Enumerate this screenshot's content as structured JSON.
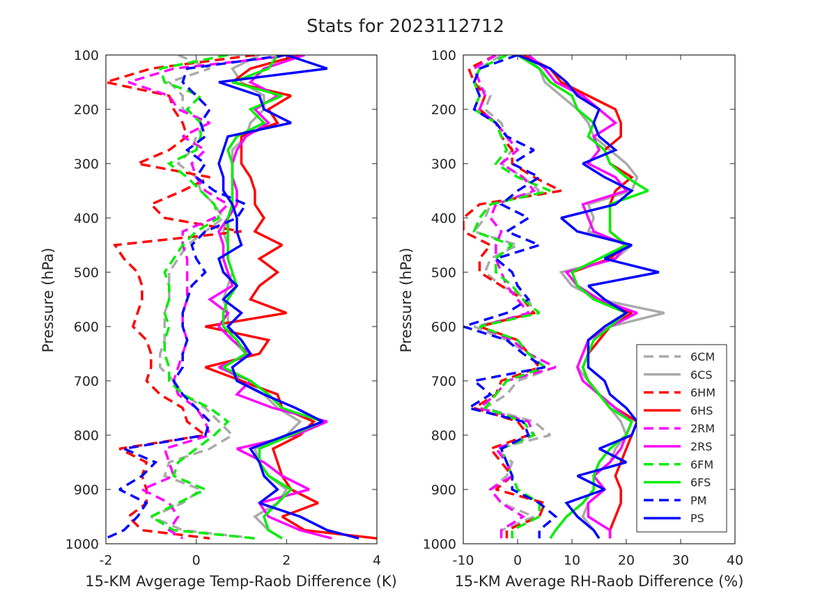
{
  "title": "Stats for 2023112712",
  "colors": {
    "6C": "#aaaaaa",
    "6H": "#ff0000",
    "2R": "#ff00ff",
    "6F": "#00ee00",
    "P": "#0000ff"
  },
  "legend": [
    {
      "label": "6CM",
      "color": "#aaaaaa",
      "dashed": true
    },
    {
      "label": "6CS",
      "color": "#aaaaaa",
      "dashed": false
    },
    {
      "label": "6HM",
      "color": "#ff0000",
      "dashed": true
    },
    {
      "label": "6HS",
      "color": "#ff0000",
      "dashed": false
    },
    {
      "label": "2RM",
      "color": "#ff00ff",
      "dashed": true
    },
    {
      "label": "2RS",
      "color": "#ff00ff",
      "dashed": false
    },
    {
      "label": "6FM",
      "color": "#00ee00",
      "dashed": true
    },
    {
      "label": "6FS",
      "color": "#00ee00",
      "dashed": false
    },
    {
      "label": "PM",
      "color": "#0000ff",
      "dashed": true
    },
    {
      "label": "PS",
      "color": "#0000ff",
      "dashed": false
    }
  ],
  "chart_data": [
    {
      "type": "line",
      "xlabel": "15-KM Avgerage Temp-Raob Difference (K)",
      "ylabel": "Pressure (hPa)",
      "xlim": [
        -2,
        4
      ],
      "ylim": [
        100,
        1000
      ],
      "y_reversed": true,
      "xticks": [
        -2,
        0,
        2,
        4
      ],
      "yticks": [
        100,
        200,
        300,
        400,
        500,
        600,
        700,
        800,
        900,
        1000
      ],
      "pressure": [
        100,
        125,
        150,
        175,
        200,
        225,
        250,
        275,
        300,
        325,
        350,
        375,
        400,
        425,
        450,
        475,
        500,
        525,
        550,
        575,
        600,
        625,
        650,
        675,
        700,
        725,
        750,
        775,
        800,
        825,
        850,
        875,
        900,
        925,
        950,
        975,
        990
      ],
      "series": [
        {
          "name": "6CM",
          "values": [
            -0.4,
            0.3,
            -0.6,
            -0.3,
            -0.3,
            0.2,
            0.0,
            -0.1,
            -0.4,
            0.0,
            0.1,
            0.4,
            0.6,
            0.2,
            -0.2,
            -0.4,
            -0.6,
            -0.6,
            -0.6,
            -0.7,
            -0.7,
            -0.7,
            -0.8,
            -0.8,
            -0.5,
            -0.3,
            0.2,
            0.5,
            0.8,
            0.3,
            -0.6,
            -0.7,
            0.1,
            -0.3,
            -1.0,
            -0.3,
            1.3
          ]
        },
        {
          "name": "6CS",
          "values": [
            1.4,
            0.8,
            1.0,
            1.5,
            1.5,
            1.2,
            1.1,
            0.8,
            0.8,
            0.8,
            0.9,
            0.9,
            0.7,
            0.6,
            0.7,
            0.7,
            0.8,
            0.7,
            0.6,
            0.7,
            0.7,
            0.8,
            1.1,
            0.6,
            1.0,
            1.5,
            1.8,
            2.3,
            2.0,
            1.3,
            1.4,
            1.6,
            2.0,
            1.8,
            1.3,
            1.6,
            1.9
          ]
        },
        {
          "name": "6HM",
          "values": [
            1.3,
            -1.0,
            -2.0,
            -0.6,
            -0.5,
            -0.3,
            -0.2,
            -0.6,
            -1.3,
            0.3,
            -0.3,
            -1.0,
            -0.7,
            1.0,
            -1.8,
            -1.6,
            -1.3,
            -1.2,
            -1.2,
            -1.3,
            -1.4,
            -1.1,
            -1.0,
            -1.0,
            -1.1,
            -0.8,
            -0.3,
            -0.2,
            0.2,
            -1.7,
            -1.1,
            -1.2,
            -1.1,
            -1.1,
            -1.5,
            -1.2,
            0.3
          ]
        },
        {
          "name": "6HS",
          "values": [
            2.3,
            1.2,
            0.8,
            2.1,
            1.6,
            1.8,
            1.0,
            1.0,
            1.0,
            1.2,
            1.3,
            1.3,
            1.5,
            1.3,
            1.9,
            1.4,
            1.8,
            1.4,
            1.2,
            2.0,
            0.2,
            1.6,
            1.4,
            0.2,
            1.0,
            1.8,
            1.9,
            2.6,
            2.3,
            1.7,
            1.8,
            1.9,
            2.1,
            2.7,
            1.9,
            2.4,
            4.0
          ]
        },
        {
          "name": "2RM",
          "values": [
            2.2,
            -0.5,
            -1.5,
            -0.6,
            -0.4,
            0.3,
            -0.3,
            0.2,
            -0.1,
            0.0,
            0.2,
            0.7,
            0.4,
            -0.3,
            -0.3,
            -0.2,
            -0.2,
            -0.2,
            -0.2,
            -0.3,
            -0.3,
            -0.2,
            -0.3,
            -0.4,
            -0.5,
            -0.4,
            0.0,
            0.2,
            0.3,
            -0.7,
            -0.6,
            -0.5,
            -1.2,
            -0.6,
            -0.4,
            -0.6,
            -0.3
          ]
        },
        {
          "name": "2RS",
          "values": [
            2.4,
            1.5,
            1.2,
            1.8,
            1.3,
            1.6,
            1.1,
            0.9,
            0.8,
            0.8,
            0.9,
            0.9,
            0.7,
            0.5,
            0.6,
            0.6,
            0.7,
            0.8,
            0.3,
            0.7,
            0.5,
            0.8,
            1.2,
            0.5,
            1.2,
            0.9,
            1.7,
            2.9,
            2.2,
            0.9,
            1.5,
            1.9,
            2.5,
            1.4,
            1.6,
            2.3,
            3.0
          ]
        },
        {
          "name": "6FM",
          "values": [
            0.7,
            -0.8,
            -0.7,
            0.1,
            -0.2,
            0.1,
            0.1,
            0.0,
            -0.6,
            -0.2,
            0.1,
            0.4,
            0.5,
            0.0,
            -0.3,
            -0.5,
            -0.7,
            -0.6,
            -0.6,
            -0.7,
            -0.6,
            -0.7,
            -0.7,
            -0.6,
            -0.6,
            -0.3,
            0.3,
            0.7,
            0.4,
            0.0,
            -0.4,
            -0.5,
            0.2,
            -0.4,
            -1.0,
            -0.5,
            1.3
          ]
        },
        {
          "name": "6FS",
          "values": [
            1.8,
            1.6,
            0.8,
            1.9,
            1.2,
            1.5,
            0.9,
            0.7,
            0.8,
            0.8,
            0.8,
            0.8,
            0.7,
            0.7,
            0.7,
            0.7,
            0.8,
            0.9,
            0.7,
            0.6,
            0.6,
            0.9,
            1.1,
            0.6,
            1.2,
            1.6,
            1.9,
            2.8,
            2.1,
            1.4,
            1.4,
            1.6,
            2.1,
            1.8,
            1.5,
            1.6,
            1.9
          ]
        },
        {
          "name": "PM",
          "values": [
            2.0,
            -0.2,
            -0.3,
            0.0,
            0.3,
            0.1,
            0.2,
            -0.2,
            0.2,
            0.0,
            0.4,
            1.1,
            0.9,
            0.2,
            -0.1,
            0.0,
            0.2,
            -0.1,
            -0.2,
            -0.3,
            -0.3,
            -0.2,
            -0.3,
            -0.3,
            -0.5,
            -0.3,
            0.0,
            0.3,
            0.2,
            -1.6,
            -0.9,
            -1.2,
            -1.7,
            -1.1,
            -1.3,
            -1.6,
            -2.0
          ]
        },
        {
          "name": "PS",
          "values": [
            2.0,
            2.9,
            0.5,
            1.4,
            1.5,
            2.1,
            0.7,
            0.6,
            0.5,
            0.6,
            0.6,
            0.8,
            0.9,
            0.9,
            1.0,
            0.5,
            0.6,
            0.9,
            0.6,
            1.0,
            0.7,
            1.0,
            1.2,
            0.8,
            0.9,
            1.5,
            2.2,
            2.8,
            2.0,
            1.2,
            1.4,
            1.5,
            1.8,
            1.4,
            2.3,
            2.9,
            3.6
          ]
        }
      ]
    },
    {
      "type": "line",
      "xlabel": "15-KM Average RH-Raob Difference (%)",
      "ylabel": "Pressure (hPa)",
      "xlim": [
        -10,
        40
      ],
      "ylim": [
        100,
        1000
      ],
      "y_reversed": true,
      "xticks": [
        -10,
        0,
        10,
        20,
        30,
        40
      ],
      "yticks": [
        100,
        200,
        300,
        400,
        500,
        600,
        700,
        800,
        900,
        1000
      ],
      "legend_location": "bottom-right",
      "pressure": [
        100,
        125,
        150,
        175,
        200,
        225,
        250,
        275,
        300,
        325,
        350,
        375,
        400,
        425,
        450,
        475,
        500,
        525,
        550,
        575,
        600,
        625,
        650,
        675,
        700,
        725,
        750,
        775,
        800,
        825,
        850,
        875,
        900,
        925,
        950,
        975,
        990
      ],
      "series": [
        {
          "name": "6CM",
          "values": [
            -3,
            -7,
            -8,
            -5,
            -6,
            -3,
            -2,
            -1,
            -3,
            1,
            4,
            -5,
            -6,
            -8,
            0,
            -5,
            -6,
            -3,
            2,
            3,
            -8,
            -2,
            2,
            7,
            0,
            -2,
            -6,
            3,
            6,
            -4,
            -1,
            -2,
            -5,
            -3,
            3,
            -3,
            -3
          ]
        },
        {
          "name": "6CS",
          "values": [
            1,
            4,
            5,
            8,
            11,
            13,
            14,
            17,
            20,
            22,
            21,
            13,
            14,
            13,
            21,
            18,
            8,
            10,
            15,
            27,
            17,
            13,
            12,
            11,
            13,
            15,
            17,
            19,
            20,
            18,
            17,
            14,
            16,
            13,
            12,
            14,
            15
          ]
        },
        {
          "name": "6HM",
          "values": [
            -4,
            -9,
            -8,
            -6,
            -7,
            -4,
            -3,
            -1,
            -1,
            3,
            8,
            -7,
            -10,
            -10,
            -5,
            -7,
            -7,
            -3,
            1,
            3,
            -7,
            0,
            2,
            4,
            -3,
            -4,
            -8,
            0,
            2,
            -5,
            -3,
            -1,
            -4,
            5,
            4,
            -2,
            -2
          ]
        },
        {
          "name": "6HS",
          "values": [
            1,
            6,
            8,
            13,
            18,
            19,
            19,
            16,
            17,
            21,
            18,
            17,
            17,
            17,
            20,
            17,
            10,
            11,
            15,
            21,
            17,
            15,
            13,
            12,
            13,
            15,
            18,
            22,
            21,
            20,
            19,
            18,
            19,
            19,
            18,
            17,
            17
          ]
        },
        {
          "name": "2RM",
          "values": [
            -4,
            -8,
            -7,
            -6,
            -7,
            -4,
            -2,
            0,
            -3,
            1,
            3,
            -4,
            -5,
            -3,
            -4,
            -4,
            -3,
            -2,
            0,
            2,
            -7,
            -1,
            2,
            7,
            -2,
            -4,
            -7,
            2,
            3,
            -4,
            -2,
            -1,
            -5,
            -3,
            1,
            -3,
            -3
          ]
        },
        {
          "name": "2RS",
          "values": [
            2,
            5,
            7,
            12,
            15,
            18,
            14,
            15,
            13,
            18,
            20,
            12,
            13,
            14,
            20,
            18,
            9,
            11,
            15,
            22,
            17,
            13,
            12,
            11,
            12,
            15,
            18,
            21,
            20,
            19,
            17,
            14,
            16,
            13,
            13,
            17,
            17
          ]
        },
        {
          "name": "6FM",
          "values": [
            -2,
            -7,
            -8,
            -7,
            -8,
            -4,
            -3,
            -2,
            -4,
            0,
            6,
            -5,
            -7,
            -8,
            -1,
            -4,
            -4,
            -1,
            1,
            4,
            -7,
            0,
            2,
            5,
            -2,
            -4,
            -6,
            1,
            3,
            -3,
            -2,
            -1,
            0,
            4,
            4,
            -1,
            -1
          ]
        },
        {
          "name": "6FS",
          "values": [
            0,
            4,
            6,
            10,
            11,
            14,
            13,
            16,
            17,
            20,
            24,
            17,
            17,
            17,
            20,
            15,
            10,
            11,
            14,
            20,
            17,
            14,
            13,
            12,
            13,
            15,
            17,
            21,
            20,
            17,
            15,
            14,
            14,
            12,
            9,
            7,
            6
          ]
        },
        {
          "name": "PM",
          "values": [
            0,
            -7,
            -8,
            -7,
            -8,
            -4,
            -2,
            3,
            -1,
            4,
            0,
            -3,
            2,
            -2,
            4,
            -4,
            -1,
            0,
            2,
            -2,
            -10,
            -2,
            1,
            5,
            -8,
            -5,
            -9,
            1,
            2,
            -3,
            -2,
            -1,
            -1,
            4,
            7,
            4,
            4
          ]
        },
        {
          "name": "PS",
          "values": [
            0,
            6,
            9,
            11,
            15,
            14,
            15,
            18,
            12,
            16,
            21,
            18,
            8,
            11,
            21,
            16,
            26,
            13,
            16,
            20,
            16,
            13,
            13,
            13,
            16,
            17,
            20,
            22,
            21,
            15,
            20,
            11,
            16,
            9,
            11,
            14,
            15
          ]
        }
      ]
    }
  ]
}
